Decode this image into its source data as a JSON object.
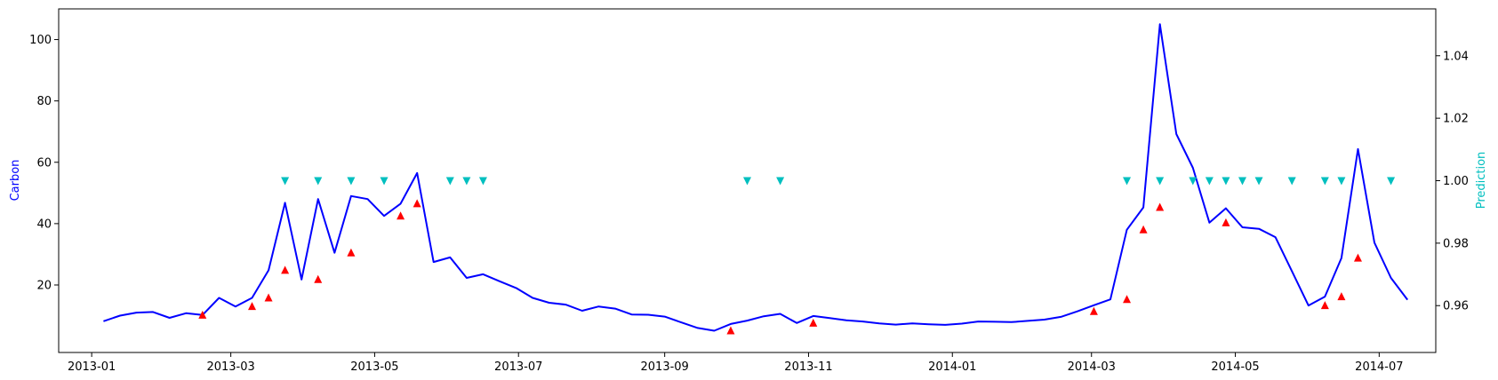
{
  "chart_data": {
    "type": "line",
    "ylabel_left": "Carbon",
    "ylabel_right": "Prediction",
    "xlim": [
      "2012-12-18",
      "2014-07-25"
    ],
    "ylim_left": [
      -2,
      110
    ],
    "ylim_right": [
      0.945,
      1.055
    ],
    "x_tick_labels": [
      "2013-01",
      "2013-03",
      "2013-05",
      "2013-07",
      "2013-09",
      "2013-11",
      "2014-01",
      "2014-03",
      "2014-05",
      "2014-07"
    ],
    "y_tick_labels_left": [
      "20",
      "40",
      "60",
      "80",
      "100"
    ],
    "y_tick_labels_right": [
      "0.96",
      "0.98",
      "1.00",
      "1.02",
      "1.04"
    ],
    "colors": {
      "line": "#0000ff",
      "increase_marker": "#ff0000",
      "prediction_marker": "#00bfbf",
      "left_label": "#0000ff",
      "right_label": "#00bfbf"
    },
    "series": [
      {
        "role": "carbon",
        "x": [
          "2013-01-06",
          "2013-01-13",
          "2013-01-20",
          "2013-01-27",
          "2013-02-03",
          "2013-02-10",
          "2013-02-17",
          "2013-02-24",
          "2013-03-03",
          "2013-03-10",
          "2013-03-17",
          "2013-03-24",
          "2013-03-31",
          "2013-04-07",
          "2013-04-14",
          "2013-04-21",
          "2013-04-28",
          "2013-05-05",
          "2013-05-12",
          "2013-05-19",
          "2013-05-26",
          "2013-06-02",
          "2013-06-09",
          "2013-06-16",
          "2013-06-23",
          "2013-06-30",
          "2013-07-07",
          "2013-07-14",
          "2013-07-21",
          "2013-07-28",
          "2013-08-04",
          "2013-08-11",
          "2013-08-18",
          "2013-08-25",
          "2013-09-01",
          "2013-09-08",
          "2013-09-15",
          "2013-09-22",
          "2013-09-29",
          "2013-10-06",
          "2013-10-13",
          "2013-10-20",
          "2013-10-27",
          "2013-11-03",
          "2013-11-10",
          "2013-11-17",
          "2013-11-24",
          "2013-12-01",
          "2013-12-08",
          "2013-12-15",
          "2013-12-22",
          "2013-12-29",
          "2014-01-05",
          "2014-01-12",
          "2014-01-19",
          "2014-01-26",
          "2014-02-02",
          "2014-02-09",
          "2014-02-16",
          "2014-02-23",
          "2014-03-02",
          "2014-03-09",
          "2014-03-16",
          "2014-03-23",
          "2014-03-30",
          "2014-04-06",
          "2014-04-13",
          "2014-04-20",
          "2014-04-27",
          "2014-05-04",
          "2014-05-11",
          "2014-05-18",
          "2014-05-25",
          "2014-06-01",
          "2014-06-08",
          "2014-06-15",
          "2014-06-22",
          "2014-06-29",
          "2014-07-06",
          "2014-07-13"
        ],
        "y": [
          8.2,
          10,
          11,
          11.2,
          9.3,
          10.8,
          10.2,
          15.8,
          13,
          15.8,
          24.8,
          46.8,
          21.8,
          48,
          30.5,
          49,
          48,
          42.5,
          46.5,
          56.5,
          27.5,
          29,
          22.3,
          23.5,
          21.2,
          19,
          15.8,
          14.2,
          13.6,
          11.6,
          13,
          12.3,
          10.4,
          10.3,
          9.7,
          7.8,
          6,
          5.1,
          7.3,
          8.4,
          9.8,
          10.6,
          7.6,
          9.9,
          9.2,
          8.5,
          8.1,
          7.5,
          7.1,
          7.5,
          7.2,
          7.0,
          7.4,
          8.1,
          8.0,
          7.9,
          8.3,
          8.7,
          9.6,
          11.4,
          13.4,
          15.3,
          38,
          45.3,
          105,
          69.2,
          58.2,
          40.3,
          45,
          38.8,
          38.3,
          35.6,
          24.5,
          13.3,
          16.2,
          28.8,
          64.3,
          33.8,
          22.3,
          15.2
        ]
      },
      {
        "role": "increase",
        "x": [
          "2013-02-17",
          "2013-03-10",
          "2013-03-17",
          "2013-03-24",
          "2013-04-07",
          "2013-04-21",
          "2013-05-12",
          "2013-05-19",
          "2013-09-29",
          "2013-11-03",
          "2014-03-02",
          "2014-03-16",
          "2014-03-23",
          "2014-03-30",
          "2014-04-27",
          "2014-06-08",
          "2014-06-15",
          "2014-06-22"
        ],
        "y": [
          10.2,
          13,
          15.8,
          24.8,
          21.8,
          30.5,
          42.5,
          46.5,
          5.1,
          7.6,
          11.4,
          15.3,
          38,
          45.3,
          40.3,
          13.3,
          16.2,
          28.8
        ]
      },
      {
        "role": "prediction",
        "x": [
          "2013-03-24",
          "2013-04-07",
          "2013-04-21",
          "2013-05-05",
          "2013-06-02",
          "2013-06-09",
          "2013-06-16",
          "2013-10-06",
          "2013-10-20",
          "2014-03-16",
          "2014-03-30",
          "2014-04-13",
          "2014-04-20",
          "2014-04-27",
          "2014-05-04",
          "2014-05-11",
          "2014-05-25",
          "2014-06-08",
          "2014-06-15",
          "2014-07-06"
        ],
        "y": [
          1,
          1,
          1,
          1,
          1,
          1,
          1,
          1,
          1,
          1,
          1,
          1,
          1,
          1,
          1,
          1,
          1,
          1,
          1,
          1
        ]
      }
    ]
  }
}
